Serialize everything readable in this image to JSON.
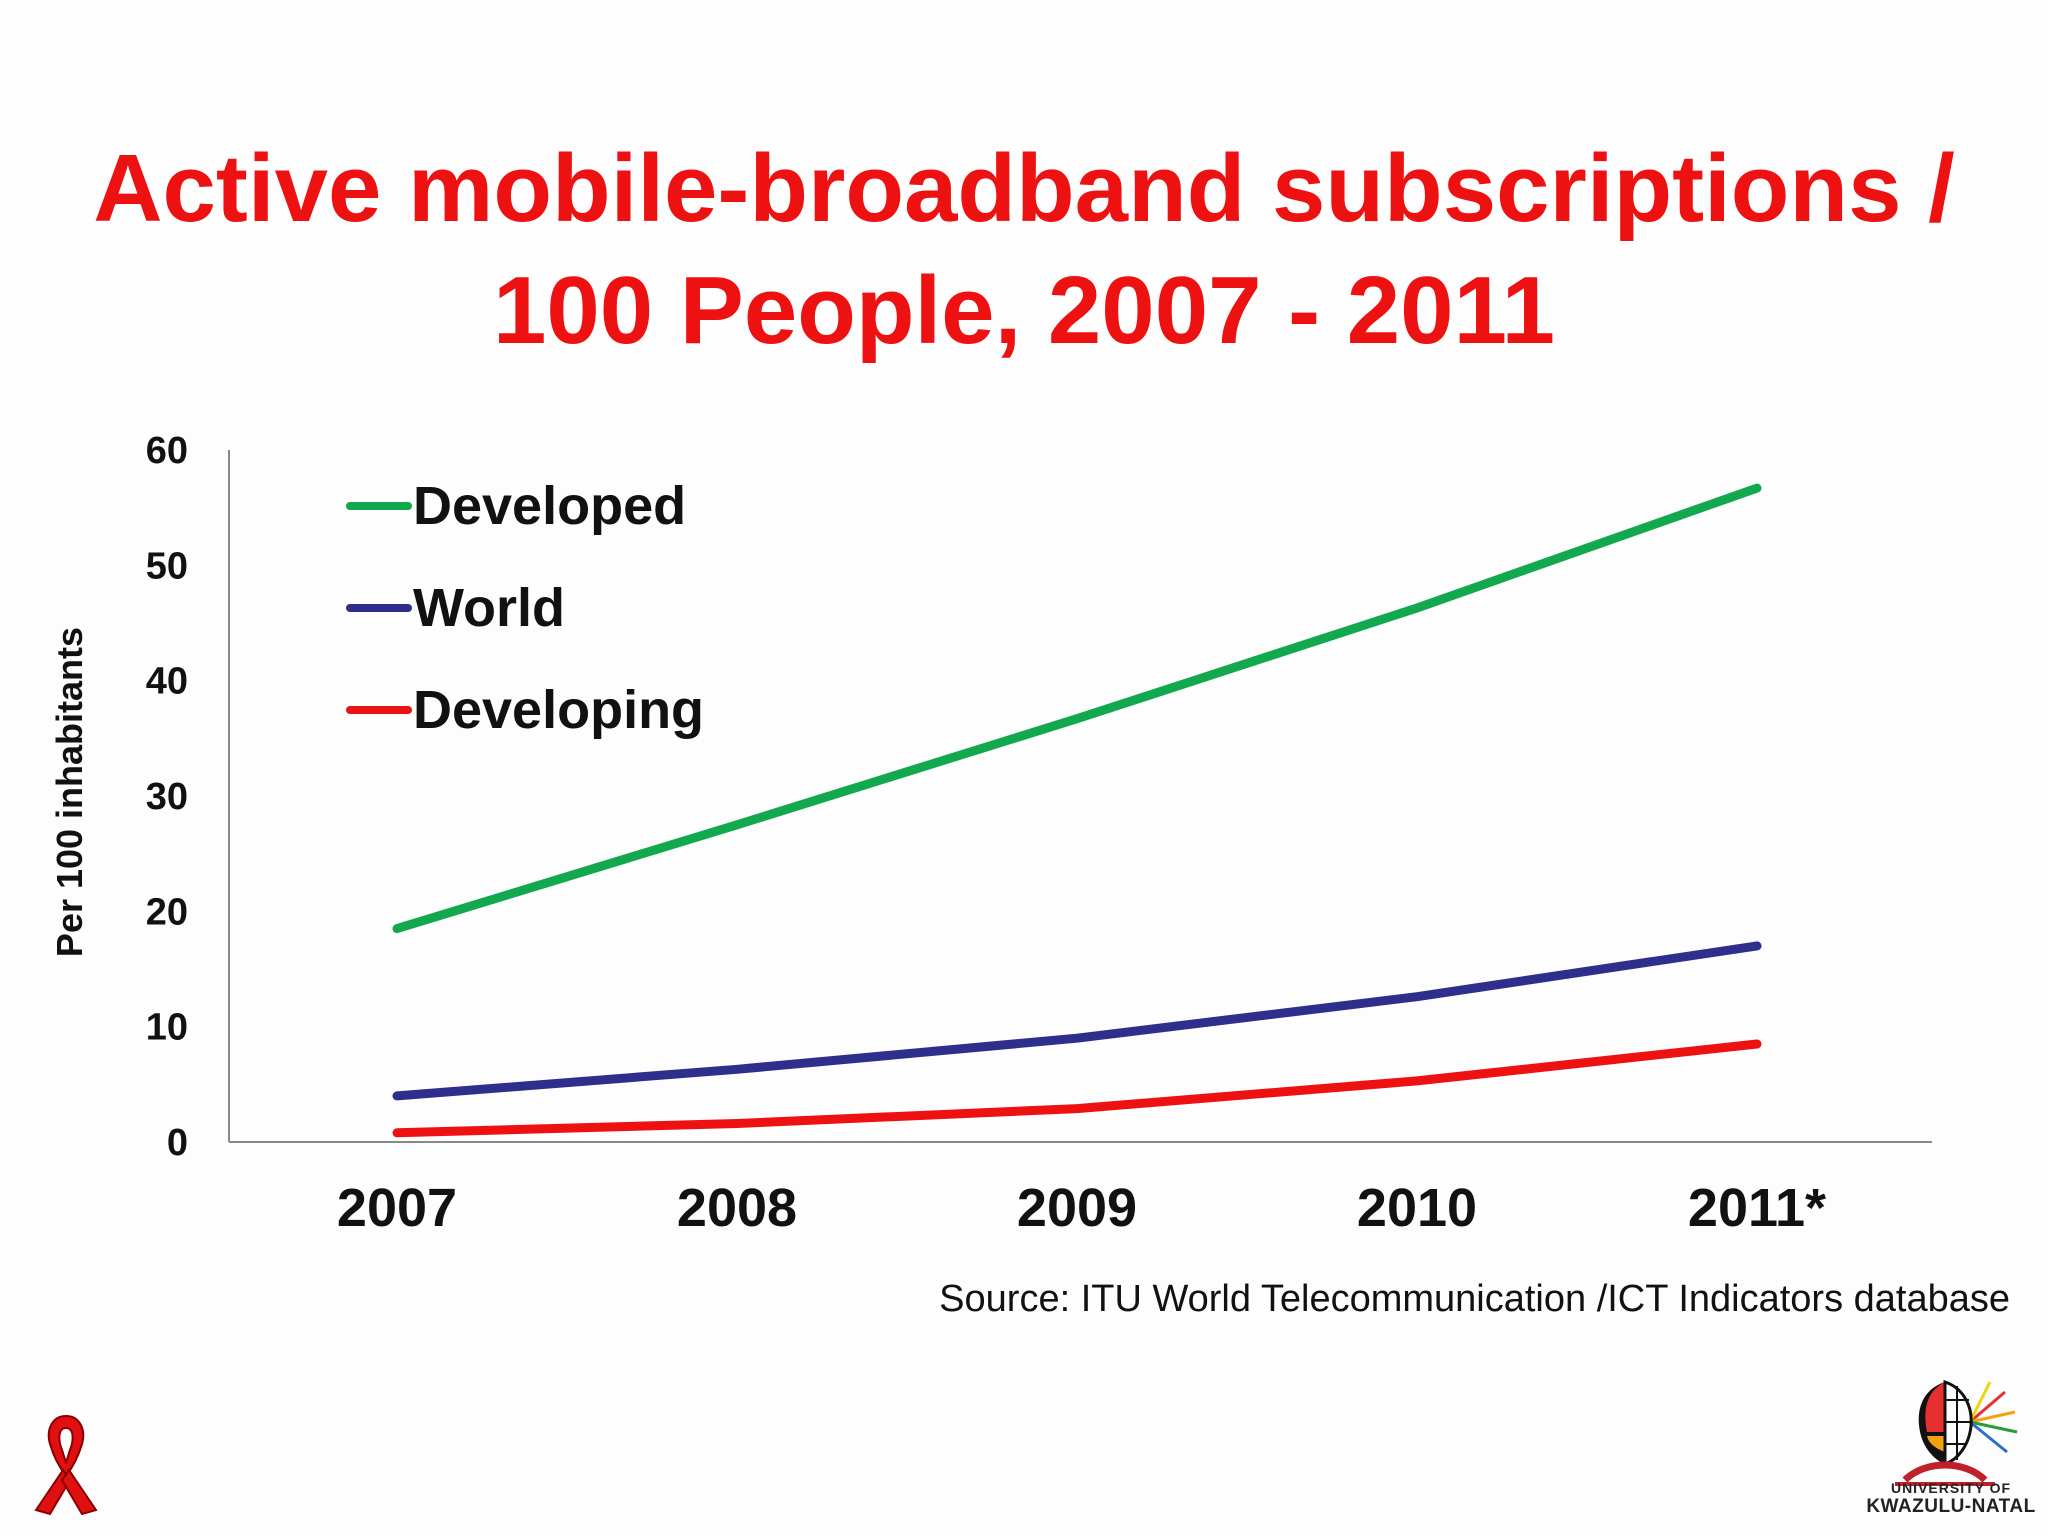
{
  "title": {
    "line1": "Active mobile-broadband subscriptions /",
    "line2": "100 People, 2007 - 2011"
  },
  "source": "Source:  ITU World Telecommunication /ICT Indicators database",
  "logo": {
    "line1": "UNIVERSITY OF",
    "line2": "KWAZULU-NATAL"
  },
  "chart_data": {
    "type": "line",
    "ylabel": "Per 100 inhabitants",
    "xlabel": "",
    "categories": [
      "2007",
      "2008",
      "2009",
      "2010",
      "2011*"
    ],
    "ylim": [
      0,
      60
    ],
    "yticks": [
      "0",
      "10",
      "20",
      "30",
      "40",
      "50",
      "60"
    ],
    "legend_position": "top-left",
    "grid": false,
    "series": [
      {
        "name": "Developed",
        "color": "#11a84e",
        "values": [
          18.5,
          27.5,
          36.7,
          46.3,
          56.7
        ]
      },
      {
        "name": "World",
        "color": "#2e2e8c",
        "values": [
          4.0,
          6.3,
          9.0,
          12.6,
          17.0
        ]
      },
      {
        "name": "Developing",
        "color": "#ee1111",
        "values": [
          0.8,
          1.6,
          2.9,
          5.3,
          8.5
        ]
      }
    ]
  }
}
